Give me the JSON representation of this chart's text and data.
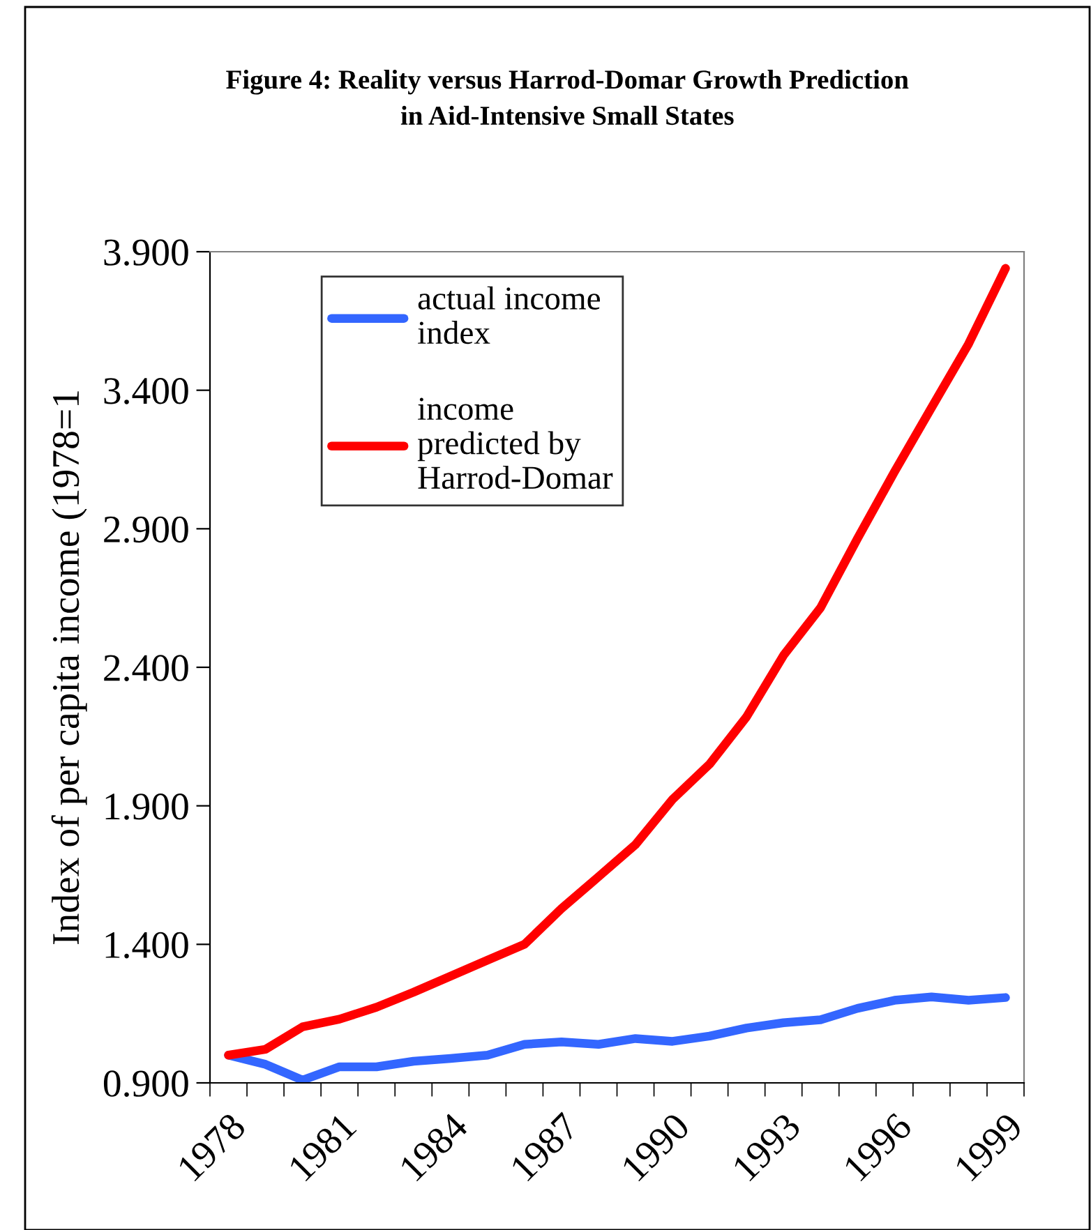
{
  "chart_data": {
    "type": "line",
    "title": "Figure 4: Reality versus Harrod-Domar Growth Prediction\nin Aid-Intensive Small States",
    "ylabel": "Index of per capita income (1978=1",
    "categories": [
      "1978",
      null,
      null,
      "1981",
      null,
      null,
      "1984",
      null,
      null,
      "1987",
      null,
      null,
      "1990",
      null,
      null,
      "1993",
      null,
      null,
      "1996",
      null,
      null,
      "1999"
    ],
    "series": [
      {
        "name": "actual income\nindex",
        "color": "#3366ff",
        "values": [
          1.0,
          0.967,
          0.91,
          0.958,
          0.958,
          0.978,
          0.988,
          1.0,
          1.039,
          1.048,
          1.039,
          1.06,
          1.05,
          1.069,
          1.098,
          1.117,
          1.128,
          1.169,
          1.198,
          1.21,
          1.198,
          1.208
        ]
      },
      {
        "name": "income\npredicted by\nHarrod-Domar",
        "color": "#ff0000",
        "values": [
          1.0,
          1.021,
          1.102,
          1.13,
          1.173,
          1.227,
          1.285,
          1.343,
          1.4,
          1.529,
          1.644,
          1.76,
          1.923,
          2.05,
          2.221,
          2.443,
          2.615,
          2.865,
          3.106,
          3.337,
          3.567,
          3.84
        ]
      }
    ],
    "ylim": [
      0.9,
      3.9
    ],
    "yticks": [
      {
        "value": 0.9,
        "label": "0.900"
      },
      {
        "value": 1.4,
        "label": "1.400"
      },
      {
        "value": 1.9,
        "label": "1.900"
      },
      {
        "value": 2.4,
        "label": "2.400"
      },
      {
        "value": 2.9,
        "label": "2.900"
      },
      {
        "value": 3.4,
        "label": "3.400"
      },
      {
        "value": 3.9,
        "label": "3.900"
      }
    ],
    "legend": "top left",
    "marker": "none",
    "line_style": "solid",
    "grid": false
  }
}
